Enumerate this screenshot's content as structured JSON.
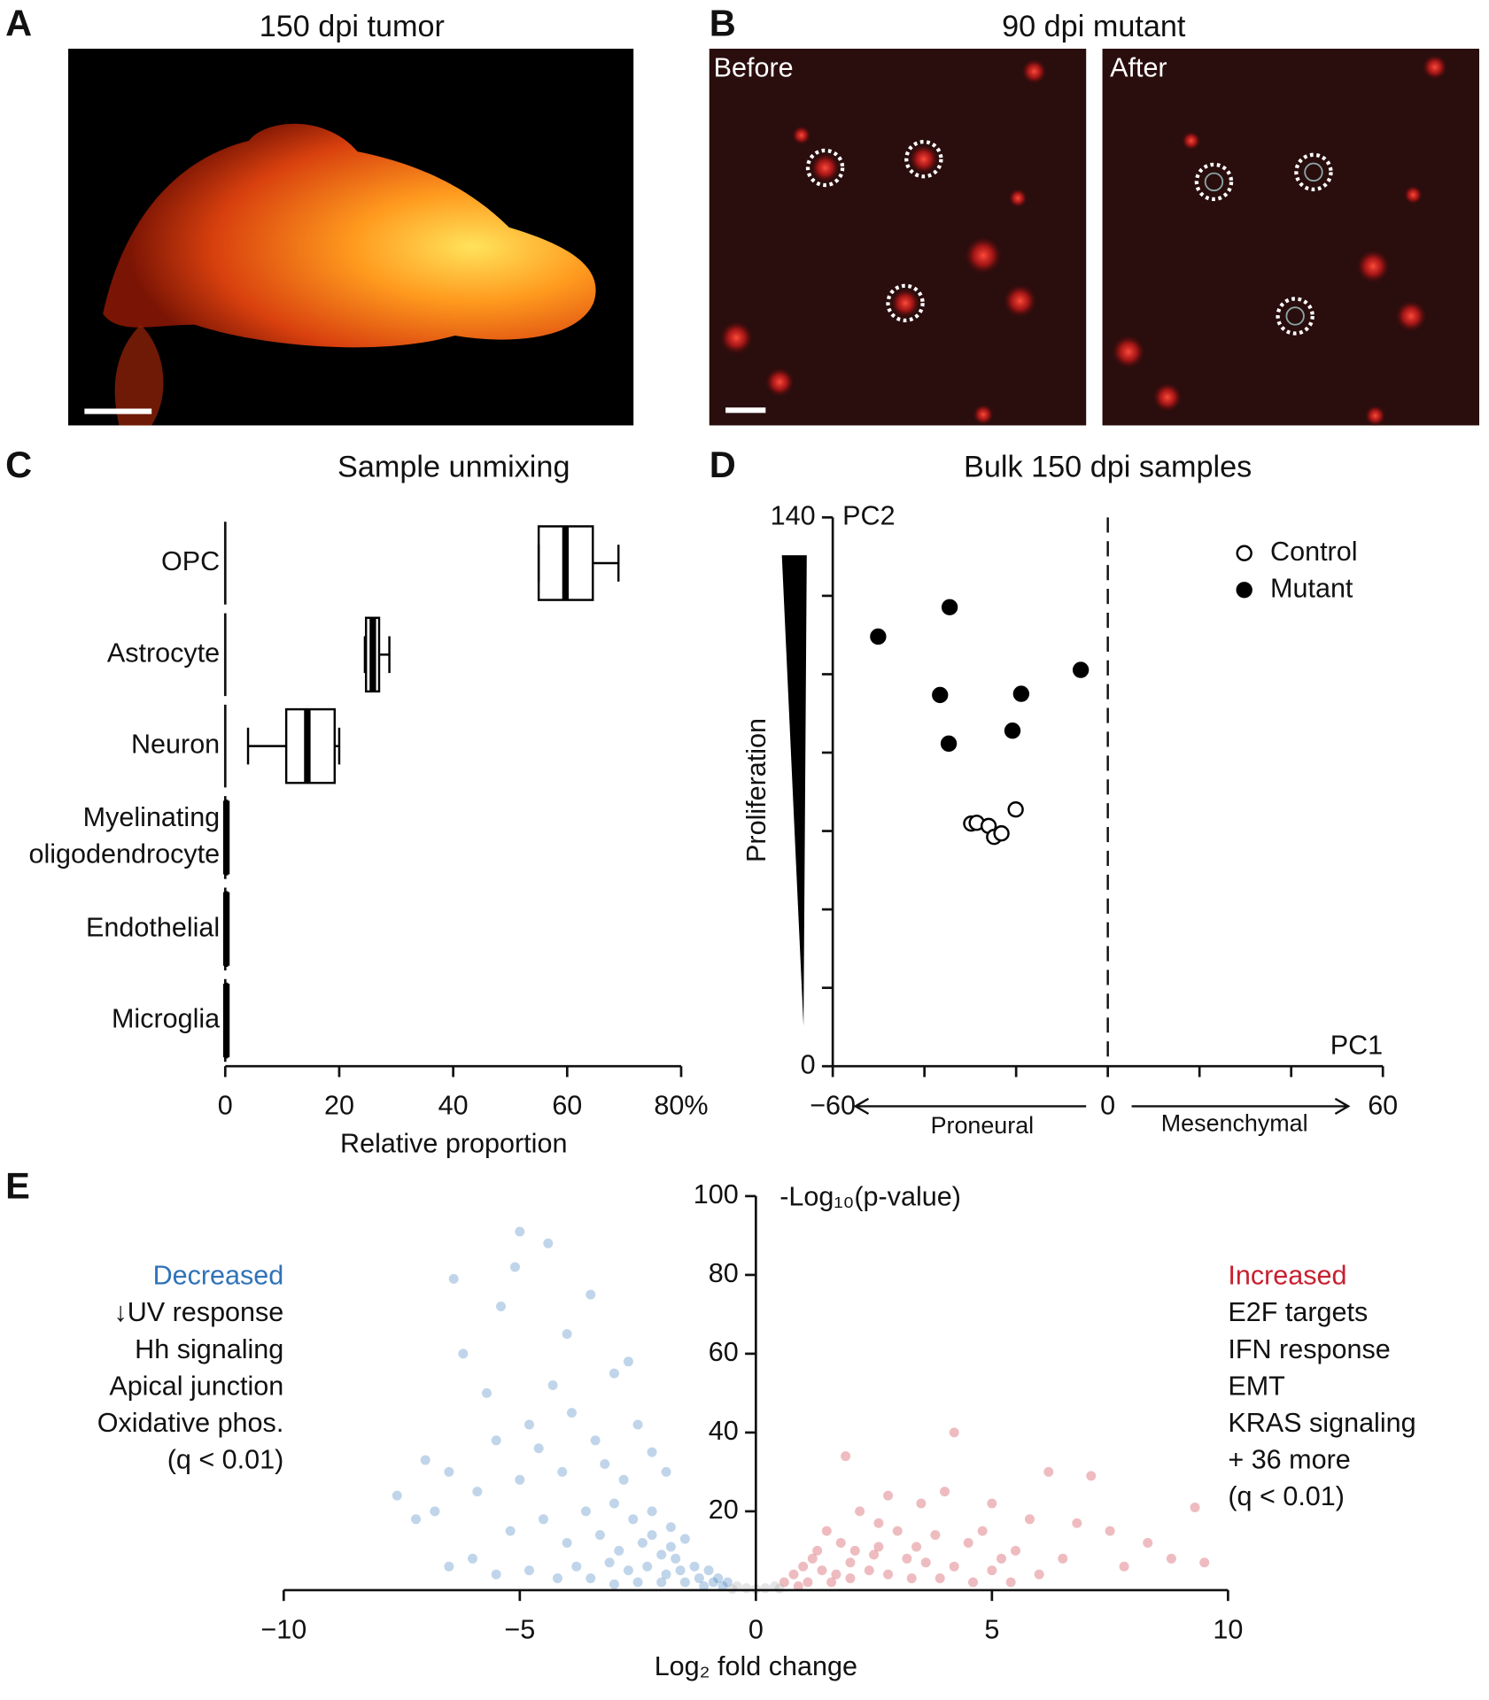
{
  "panel_labels": [
    "A",
    "B",
    "C",
    "D",
    "E"
  ],
  "images": [
    {
      "title": "150 dpi tumor"
    },
    {
      "title": "90 dpi mutant",
      "panels": [
        "Before",
        "After"
      ]
    }
  ],
  "chart_data": [
    {
      "type": "box",
      "title": "Sample unmixing",
      "xlabel": "Relative proportion",
      "categories": [
        "OPC",
        "Astrocyte",
        "Neuron",
        "Myelinating oligodendrocyte",
        "Endothelial",
        "Microglia"
      ],
      "min": [
        55,
        24.5,
        4,
        0,
        0,
        0
      ],
      "q1": [
        55,
        24.7,
        10.7,
        0.1,
        0.1,
        0.1
      ],
      "median": [
        59.7,
        25.9,
        14.4,
        0.2,
        0.2,
        0.2
      ],
      "q3": [
        64.5,
        27,
        19.2,
        0.3,
        0.3,
        0.3
      ],
      "max": [
        69,
        28.8,
        20,
        0.4,
        0.4,
        0.4
      ],
      "color": "#000000",
      "xlim": [
        0,
        80
      ],
      "xticks": [
        0,
        20,
        40,
        60,
        {
          "value": 80,
          "label": "80%"
        }
      ]
    },
    {
      "type": "scatter",
      "title": "Bulk 150 dpi samples",
      "xlabel": "PC1",
      "ylabel": "PC2",
      "annotations": [
        "Proneural",
        "Mesenchymal",
        "Proliferation"
      ],
      "series": [
        {
          "name": "Control",
          "color": "#000000",
          "filled": false,
          "x": [
            -29.8,
            -28.6,
            -26.0,
            -24.8,
            -23.2,
            -20.1
          ],
          "y": [
            61.9,
            62.1,
            61.3,
            58.5,
            59.4,
            65.5
          ]
        },
        {
          "name": "Mutant",
          "color": "#000000",
          "filled": true,
          "x": [
            -50.1,
            -34.5,
            -36.6,
            -18.9,
            -5.9,
            -34.7,
            -20.8
          ],
          "y": [
            109.6,
            117.1,
            94.7,
            95.0,
            101.1,
            82.3,
            85.6
          ]
        }
      ],
      "xlim": [
        -60,
        60
      ],
      "xticks": [
        {
          "value": -60,
          "label": "−60"
        },
        {
          "value": -40,
          "label": null
        },
        {
          "value": -20,
          "label": null
        },
        0,
        {
          "value": 20,
          "label": null
        },
        {
          "value": 40,
          "label": null
        },
        60
      ],
      "ylim": [
        0,
        140
      ],
      "yticks": [
        0,
        {
          "value": 20,
          "label": null
        },
        {
          "value": 40,
          "label": null
        },
        {
          "value": 60,
          "label": null
        },
        {
          "value": 80,
          "label": null
        },
        {
          "value": 100,
          "label": null
        },
        {
          "value": 120,
          "label": null
        },
        140
      ],
      "legend": "upper right"
    },
    {
      "type": "volcano",
      "xlabel": "Log₂ fold change",
      "ylabel": "-Log₁₀(p-value)",
      "annotations": {
        "decreased": [
          "↓UV response",
          "Hh signaling",
          "Apical junction",
          "Oxidative phos.",
          "(q < 0.01)"
        ],
        "increased": [
          "E2F targets",
          "IFN response",
          "EMT",
          "KRAS signaling",
          "+ 36 more",
          "(q < 0.01)"
        ]
      },
      "series": [
        {
          "name": "Decreased",
          "color": "#2f73b8",
          "x": [
            -5.0,
            -4.4,
            -5.1,
            -6.4,
            -3.5,
            -5.4,
            -6.2,
            -4.0,
            -2.7,
            -3.0,
            -5.7,
            -4.3,
            -3.9,
            -4.8,
            -2.5,
            -7.0,
            -7.6,
            -6.5,
            -5.5,
            -4.6,
            -3.4,
            -2.2,
            -6.8,
            -7.2,
            -5.9,
            -5.0,
            -4.1,
            -3.2,
            -2.8,
            -1.9,
            -3.6,
            -3.0,
            -2.6,
            -2.2,
            -1.8,
            -1.5,
            -4.5,
            -5.2,
            -6.0,
            -4.0,
            -3.3,
            -2.9,
            -2.4,
            -2.0,
            -1.7,
            -1.3,
            -1.0,
            -0.8,
            -0.6,
            -3.8,
            -3.1,
            -2.7,
            -2.3,
            -1.9,
            -1.6,
            -1.2,
            -0.9,
            -4.8,
            -5.5,
            -6.5,
            -4.2,
            -3.5,
            -2.5,
            -2.0,
            -1.5,
            -1.1,
            -0.7,
            -3.0,
            -2.2,
            -1.8
          ],
          "y": [
            91,
            88,
            82,
            79,
            75,
            72,
            60,
            65,
            58,
            55,
            50,
            52,
            45,
            42,
            42,
            33,
            24,
            30,
            38,
            36,
            38,
            35,
            20,
            18,
            25,
            28,
            30,
            32,
            28,
            30,
            20,
            22,
            18,
            20,
            16,
            13,
            18,
            15,
            8,
            12,
            14,
            10,
            12,
            9,
            8,
            6,
            5,
            3,
            2,
            6,
            7,
            5,
            6,
            4,
            5,
            3,
            2,
            5,
            4,
            6,
            3,
            3,
            2,
            2,
            2,
            1,
            1,
            1.5,
            14,
            11
          ]
        },
        {
          "name": "Increased",
          "color": "#c8202f",
          "x": [
            4.2,
            1.9,
            6.2,
            7.1,
            9.3,
            9.5,
            2.8,
            3.5,
            4.0,
            5.0,
            5.8,
            6.8,
            7.5,
            8.3,
            8.8,
            2.2,
            2.6,
            3.0,
            3.8,
            4.5,
            5.5,
            6.5,
            7.8,
            1.5,
            1.8,
            2.1,
            2.5,
            3.2,
            3.6,
            4.2,
            5.0,
            6.0,
            1.2,
            1.0,
            0.8,
            0.6,
            1.4,
            1.7,
            2.0,
            2.4,
            2.8,
            3.3,
            3.9,
            4.6,
            5.4,
            1.1,
            0.9,
            1.6,
            2.6,
            3.4,
            2.0,
            1.3,
            4.8,
            5.2
          ],
          "y": [
            40,
            34,
            30,
            29,
            21,
            7,
            24,
            22,
            25,
            22,
            18,
            17,
            15,
            12,
            8,
            20,
            17,
            15,
            14,
            12,
            10,
            8,
            6,
            15,
            12,
            10,
            9,
            8,
            7,
            6,
            5,
            4,
            8,
            6,
            4,
            2,
            5,
            4,
            3,
            5,
            4,
            3,
            3,
            2,
            2,
            2,
            1,
            2,
            11,
            11,
            7,
            10,
            15,
            8
          ]
        },
        {
          "color": "#aaaaaa",
          "x": [
            -0.4,
            -0.2,
            0,
            0.2,
            0.4,
            -0.5,
            0.5
          ],
          "y": [
            1,
            0.5,
            0.3,
            0.5,
            1,
            0.3,
            0.4
          ]
        }
      ],
      "xlim": [
        -10,
        10
      ],
      "xticks": [
        {
          "value": -10,
          "label": "−10"
        },
        {
          "value": -5,
          "label": "−5"
        },
        0,
        5,
        10
      ],
      "ylim": [
        0,
        100
      ],
      "yticks": [
        20,
        40,
        60,
        80,
        100
      ]
    }
  ]
}
